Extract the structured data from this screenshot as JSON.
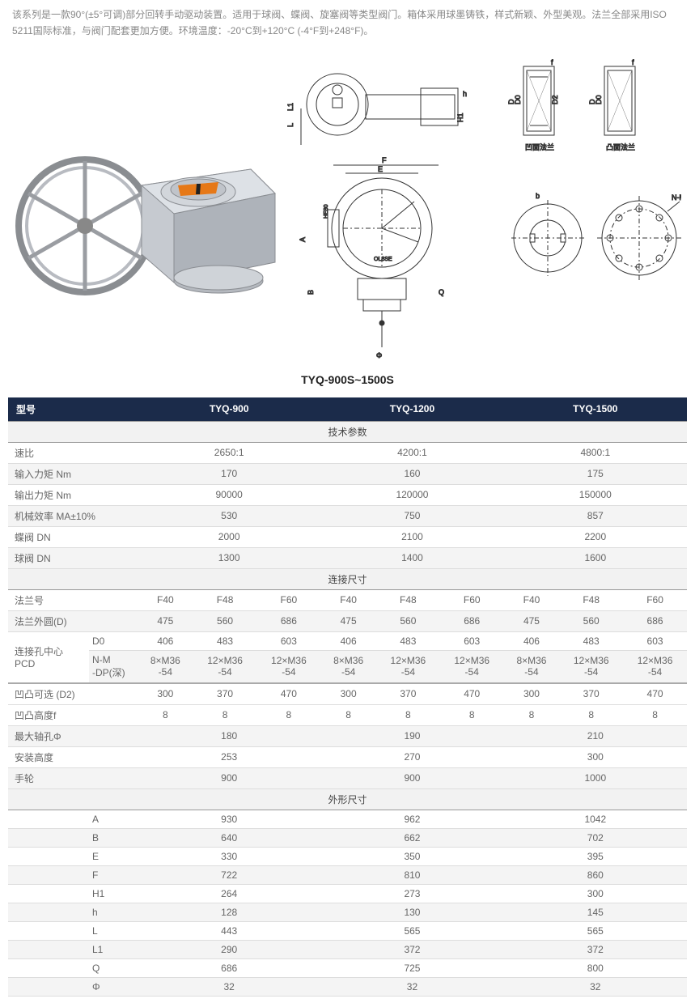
{
  "intro": "该系列是一款90°(±5°可调)部分回转手动驱动装置。适用于球阀、蝶阀、旋塞阀等类型阀门。箱体采用球墨铸铁，样式新颖、外型美观。法兰全部采用ISO 5211国际标准，与阀门配套更加方便。环境温度：-20°C到+120°C (-4°F到+248°F)。",
  "flange_labels": {
    "concave": "凹面法兰",
    "convex": "凸面法兰"
  },
  "model_title": "TYQ-900S~1500S",
  "header": {
    "model": "型号",
    "m1": "TYQ-900",
    "m2": "TYQ-1200",
    "m3": "TYQ-1500"
  },
  "sections": {
    "tech": "技术参数",
    "conn": "连接尺寸",
    "dims": "外形尺寸"
  },
  "tech_rows": [
    {
      "label": "速比",
      "v": [
        "2650:1",
        "4200:1",
        "4800:1"
      ]
    },
    {
      "label": "输入力矩 Nm",
      "v": [
        "170",
        "160",
        "175"
      ]
    },
    {
      "label": "输出力矩 Nm",
      "v": [
        "90000",
        "120000",
        "150000"
      ]
    },
    {
      "label": "机械效率 MA±10%",
      "v": [
        "530",
        "750",
        "857"
      ]
    },
    {
      "label": "蝶阀 DN",
      "v": [
        "2000",
        "2100",
        "2200"
      ]
    },
    {
      "label": "球阀 DN",
      "v": [
        "1300",
        "1400",
        "1600"
      ]
    }
  ],
  "flange_no_label": "法兰号",
  "flange_nos": [
    "F40",
    "F48",
    "F60",
    "F40",
    "F48",
    "F60",
    "F40",
    "F48",
    "F60"
  ],
  "flange_od_label": "法兰外圆(D)",
  "flange_od": [
    "475",
    "560",
    "686",
    "475",
    "560",
    "686",
    "475",
    "560",
    "686"
  ],
  "pcd_label": "连接孔中心 PCD",
  "pcd_d0_label": "D0",
  "pcd_d0": [
    "406",
    "483",
    "603",
    "406",
    "483",
    "603",
    "406",
    "483",
    "603"
  ],
  "pcd_nm_label": "N-M -DP(深)",
  "pcd_nm": [
    "8×M36 -54",
    "12×M36 -54",
    "12×M36 -54",
    "8×M36 -54",
    "12×M36 -54",
    "12×M36 -54",
    "8×M36 -54",
    "12×M36 -54",
    "12×M36 -54"
  ],
  "d2_label": "凹凸可选 (D2)",
  "d2": [
    "300",
    "370",
    "470",
    "300",
    "370",
    "470",
    "300",
    "370",
    "470"
  ],
  "f_label": "凹凸高度f",
  "f_vals": [
    "8",
    "8",
    "8",
    "8",
    "8",
    "8",
    "8",
    "8",
    "8"
  ],
  "single_rows": [
    {
      "label": "最大轴孔Φ",
      "v": [
        "180",
        "190",
        "210"
      ]
    },
    {
      "label": "安装高度",
      "v": [
        "253",
        "270",
        "300"
      ]
    },
    {
      "label": "手轮",
      "v": [
        "900",
        "900",
        "1000"
      ]
    }
  ],
  "dims_rows": [
    {
      "label": "A",
      "v": [
        "930",
        "962",
        "1042"
      ]
    },
    {
      "label": "B",
      "v": [
        "640",
        "662",
        "702"
      ]
    },
    {
      "label": "E",
      "v": [
        "330",
        "350",
        "395"
      ]
    },
    {
      "label": "F",
      "v": [
        "722",
        "810",
        "860"
      ]
    },
    {
      "label": "H1",
      "v": [
        "264",
        "273",
        "300"
      ]
    },
    {
      "label": "h",
      "v": [
        "128",
        "130",
        "145"
      ]
    },
    {
      "label": "L",
      "v": [
        "443",
        "565",
        "565"
      ]
    },
    {
      "label": "L1",
      "v": [
        "290",
        "372",
        "372"
      ]
    },
    {
      "label": "Q",
      "v": [
        "686",
        "725",
        "800"
      ]
    },
    {
      "label": "Φ",
      "v": [
        "32",
        "32",
        "32"
      ]
    }
  ],
  "colors": {
    "header_bg": "#1b2b4a",
    "section_bg": "#f2f2f2",
    "alt_bg": "#f4f4f4",
    "text": "#666666",
    "border": "#dddddd"
  }
}
